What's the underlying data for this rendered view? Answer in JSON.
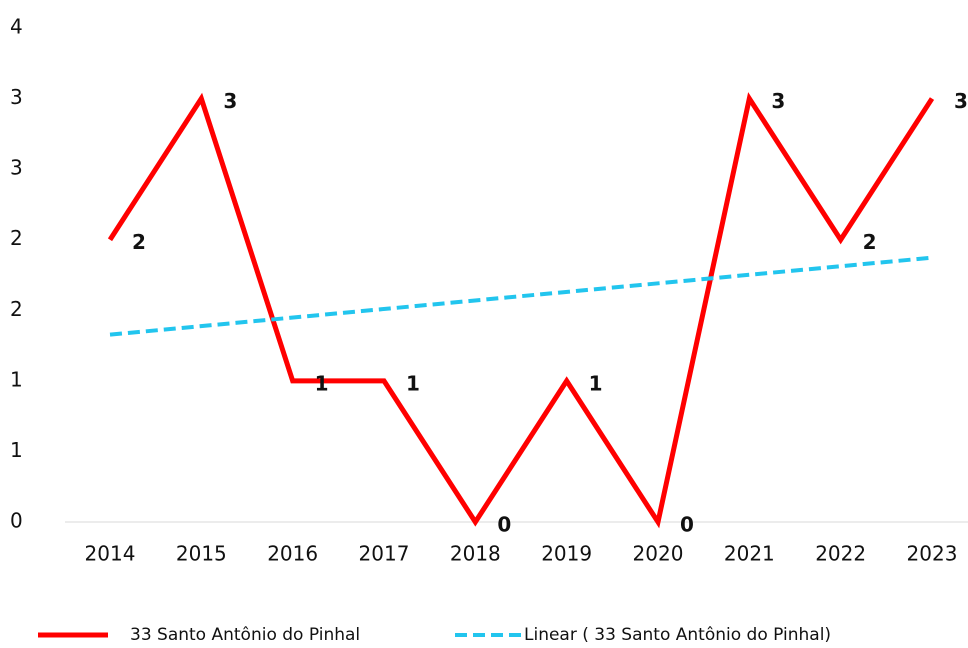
{
  "chart_data": {
    "type": "line",
    "categories": [
      "2014",
      "2015",
      "2016",
      "2017",
      "2018",
      "2019",
      "2020",
      "2021",
      "2022",
      "2023"
    ],
    "series": [
      {
        "name": "33 Santo Antônio do Pinhal",
        "color": "#ff0000",
        "values": [
          2,
          3,
          1,
          1,
          0,
          1,
          0,
          3,
          2,
          3
        ]
      }
    ],
    "trendline": {
      "type": "linear",
      "name": "Linear ( 33 Santo Antônio do Pinhal)",
      "color": "#22c5ee"
    },
    "ylim": [
      0,
      3.5
    ],
    "yticks": [
      0,
      {
        "value": 0.5,
        "label": "1"
      },
      1,
      {
        "value": 1.5,
        "label": "2"
      },
      2,
      {
        "value": 2.5,
        "label": "3"
      },
      3,
      {
        "value": 3.5,
        "label": "4"
      }
    ],
    "grid": false
  }
}
